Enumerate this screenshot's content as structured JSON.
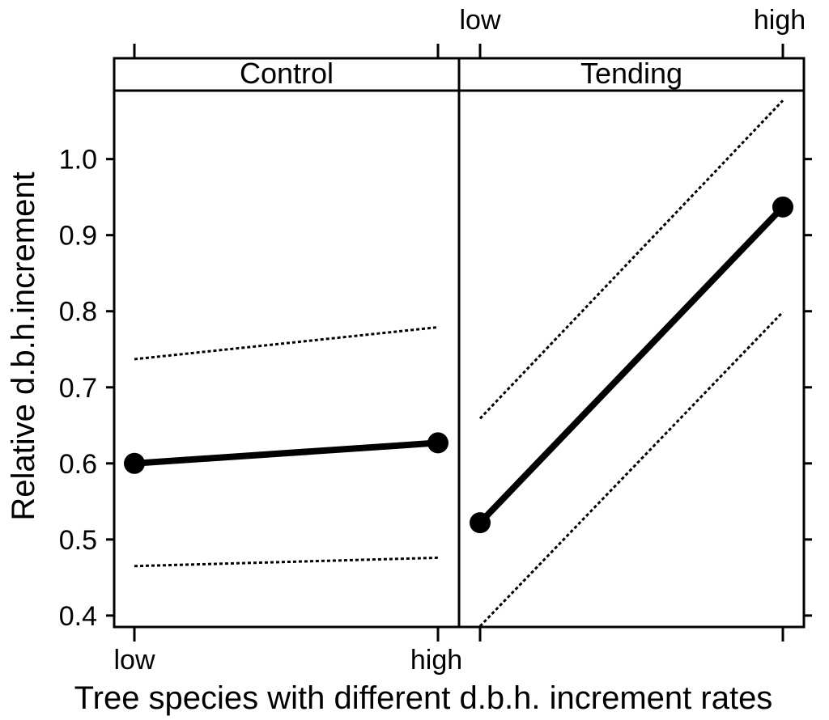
{
  "chart_data": {
    "type": "line",
    "ylabel": "Relative d.b.h.increment",
    "xlabel": "Tree species with different d.b.h. increment rates",
    "categories": [
      "low",
      "high"
    ],
    "ylim": [
      0.385,
      1.09
    ],
    "yticks": [
      "0.4",
      "0.5",
      "0.6",
      "0.7",
      "0.8",
      "0.9",
      "1.0"
    ],
    "panels": [
      {
        "name": "Control",
        "estimate": [
          0.6,
          0.627
        ],
        "lower": [
          0.465,
          0.476
        ],
        "upper": [
          0.737,
          0.779
        ]
      },
      {
        "name": "Tending",
        "estimate": [
          0.522,
          0.937
        ],
        "lower": [
          0.386,
          0.799
        ],
        "upper": [
          0.659,
          1.077
        ]
      }
    ]
  }
}
